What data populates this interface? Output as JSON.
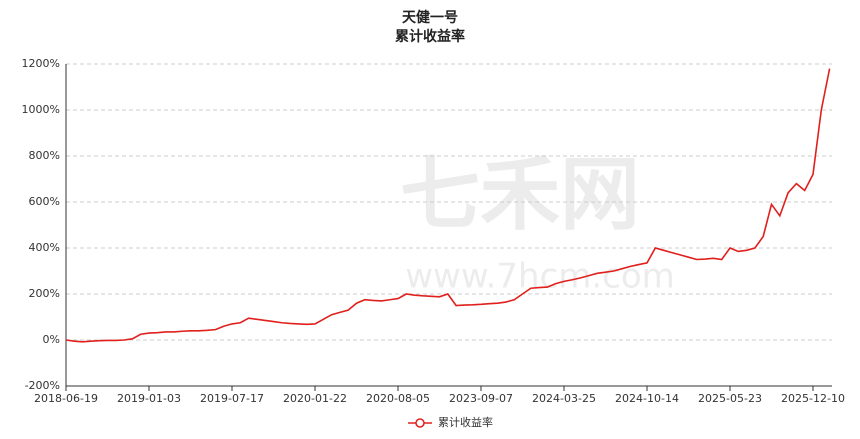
{
  "chart_data": {
    "type": "line",
    "title": "天健一号",
    "subtitle": "累计收益率",
    "watermark": [
      "七禾网",
      "www.7hcm.com"
    ],
    "categories": [
      "2018-06-19",
      null,
      null,
      null,
      null,
      null,
      null,
      null,
      null,
      null,
      "2019-01-03",
      null,
      null,
      null,
      null,
      null,
      null,
      null,
      null,
      null,
      "2019-07-17",
      null,
      null,
      null,
      null,
      null,
      null,
      null,
      null,
      null,
      "2020-01-22",
      null,
      null,
      null,
      null,
      null,
      null,
      null,
      null,
      null,
      "2020-08-05",
      null,
      null,
      null,
      null,
      null,
      null,
      null,
      null,
      null,
      "2023-09-07",
      null,
      null,
      null,
      null,
      null,
      null,
      null,
      null,
      null,
      "2024-03-25",
      null,
      null,
      null,
      null,
      null,
      null,
      null,
      null,
      null,
      "2024-10-14",
      null,
      null,
      null,
      null,
      null,
      null,
      null,
      null,
      null,
      "2025-05-23",
      null,
      null,
      null,
      null,
      null,
      null,
      null,
      null,
      null,
      "2025-12-10",
      null,
      null
    ],
    "series": [
      {
        "name": "累计收益率",
        "color": "#e0201c",
        "values": [
          0,
          -5,
          -8,
          -5,
          -3,
          -2,
          -2,
          0,
          5,
          25,
          30,
          32,
          35,
          35,
          38,
          40,
          40,
          42,
          45,
          60,
          70,
          75,
          95,
          90,
          85,
          80,
          75,
          72,
          70,
          68,
          70,
          90,
          110,
          120,
          130,
          160,
          175,
          172,
          170,
          175,
          180,
          200,
          195,
          192,
          190,
          188,
          200,
          150,
          152,
          153,
          155,
          158,
          160,
          165,
          175,
          200,
          225,
          228,
          230,
          245,
          255,
          262,
          270,
          280,
          290,
          295,
          300,
          310,
          320,
          328,
          335,
          400,
          390,
          380,
          370,
          360,
          350,
          352,
          355,
          350,
          400,
          385,
          390,
          400,
          450,
          590,
          540,
          640,
          680,
          650,
          720,
          1000,
          1180
        ]
      }
    ],
    "ylim": [
      -200,
      1200
    ],
    "yticks": [
      {
        "value": -200,
        "label": "-200%"
      },
      {
        "value": 0,
        "label": "0%"
      },
      {
        "value": 200,
        "label": "200%"
      },
      {
        "value": 400,
        "label": "400%"
      },
      {
        "value": 600,
        "label": "600%"
      },
      {
        "value": 800,
        "label": "800%"
      },
      {
        "value": 1000,
        "label": "1000%"
      },
      {
        "value": 1200,
        "label": "1200%"
      }
    ],
    "grid": true
  }
}
